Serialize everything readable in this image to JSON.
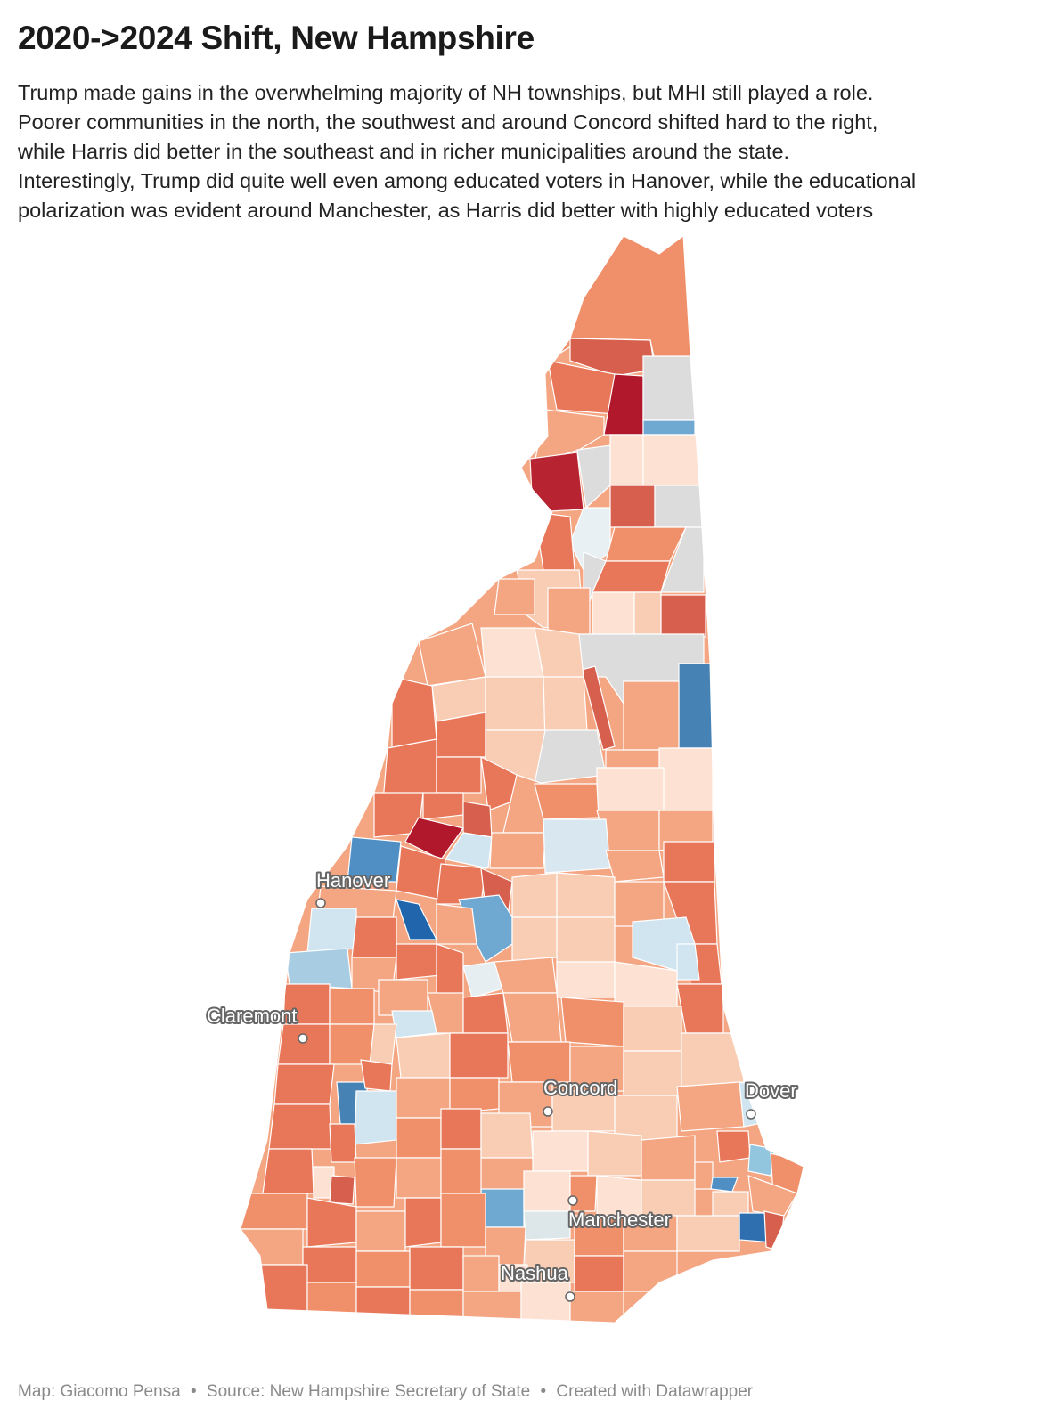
{
  "header": {
    "title": "2020->2024 Shift, New Hampshire",
    "description": [
      "Trump made gains in the overwhelming majority of NH townships, but MHI still played a role.",
      "Poorer communities in the north, the southwest and around Concord shifted hard to the right,",
      "while Harris did better in the southeast and in richer municipalities around the state.",
      "Interestingly, Trump did quite well even among educated voters in Hanover, while the educational",
      "polarization was evident around Manchester, as Harris did better with highly educated voters"
    ]
  },
  "map": {
    "cities": [
      {
        "name": "Hanover"
      },
      {
        "name": "Claremont"
      },
      {
        "name": "Concord"
      },
      {
        "name": "Dover"
      },
      {
        "name": "Manchester"
      },
      {
        "name": "Nashua"
      }
    ],
    "colors": {
      "strong_red": "#b2182b",
      "red": "#d6604d",
      "mid_red": "#e8775a",
      "orange": "#f0906b",
      "light_orange": "#f4a582",
      "pale": "#f9cdb4",
      "very_pale": "#fde2d3",
      "light_blue": "#d1e5f0",
      "blue": "#92c5de",
      "mid_blue": "#6fa9d2",
      "strong_blue": "#2166ac",
      "no_data": "#dcdcdc"
    }
  },
  "footer": {
    "credit": "Map: Giacomo Pensa",
    "source": "Source: New Hampshire Secretary of State",
    "tool": "Created with Datawrapper",
    "separator": "•"
  }
}
